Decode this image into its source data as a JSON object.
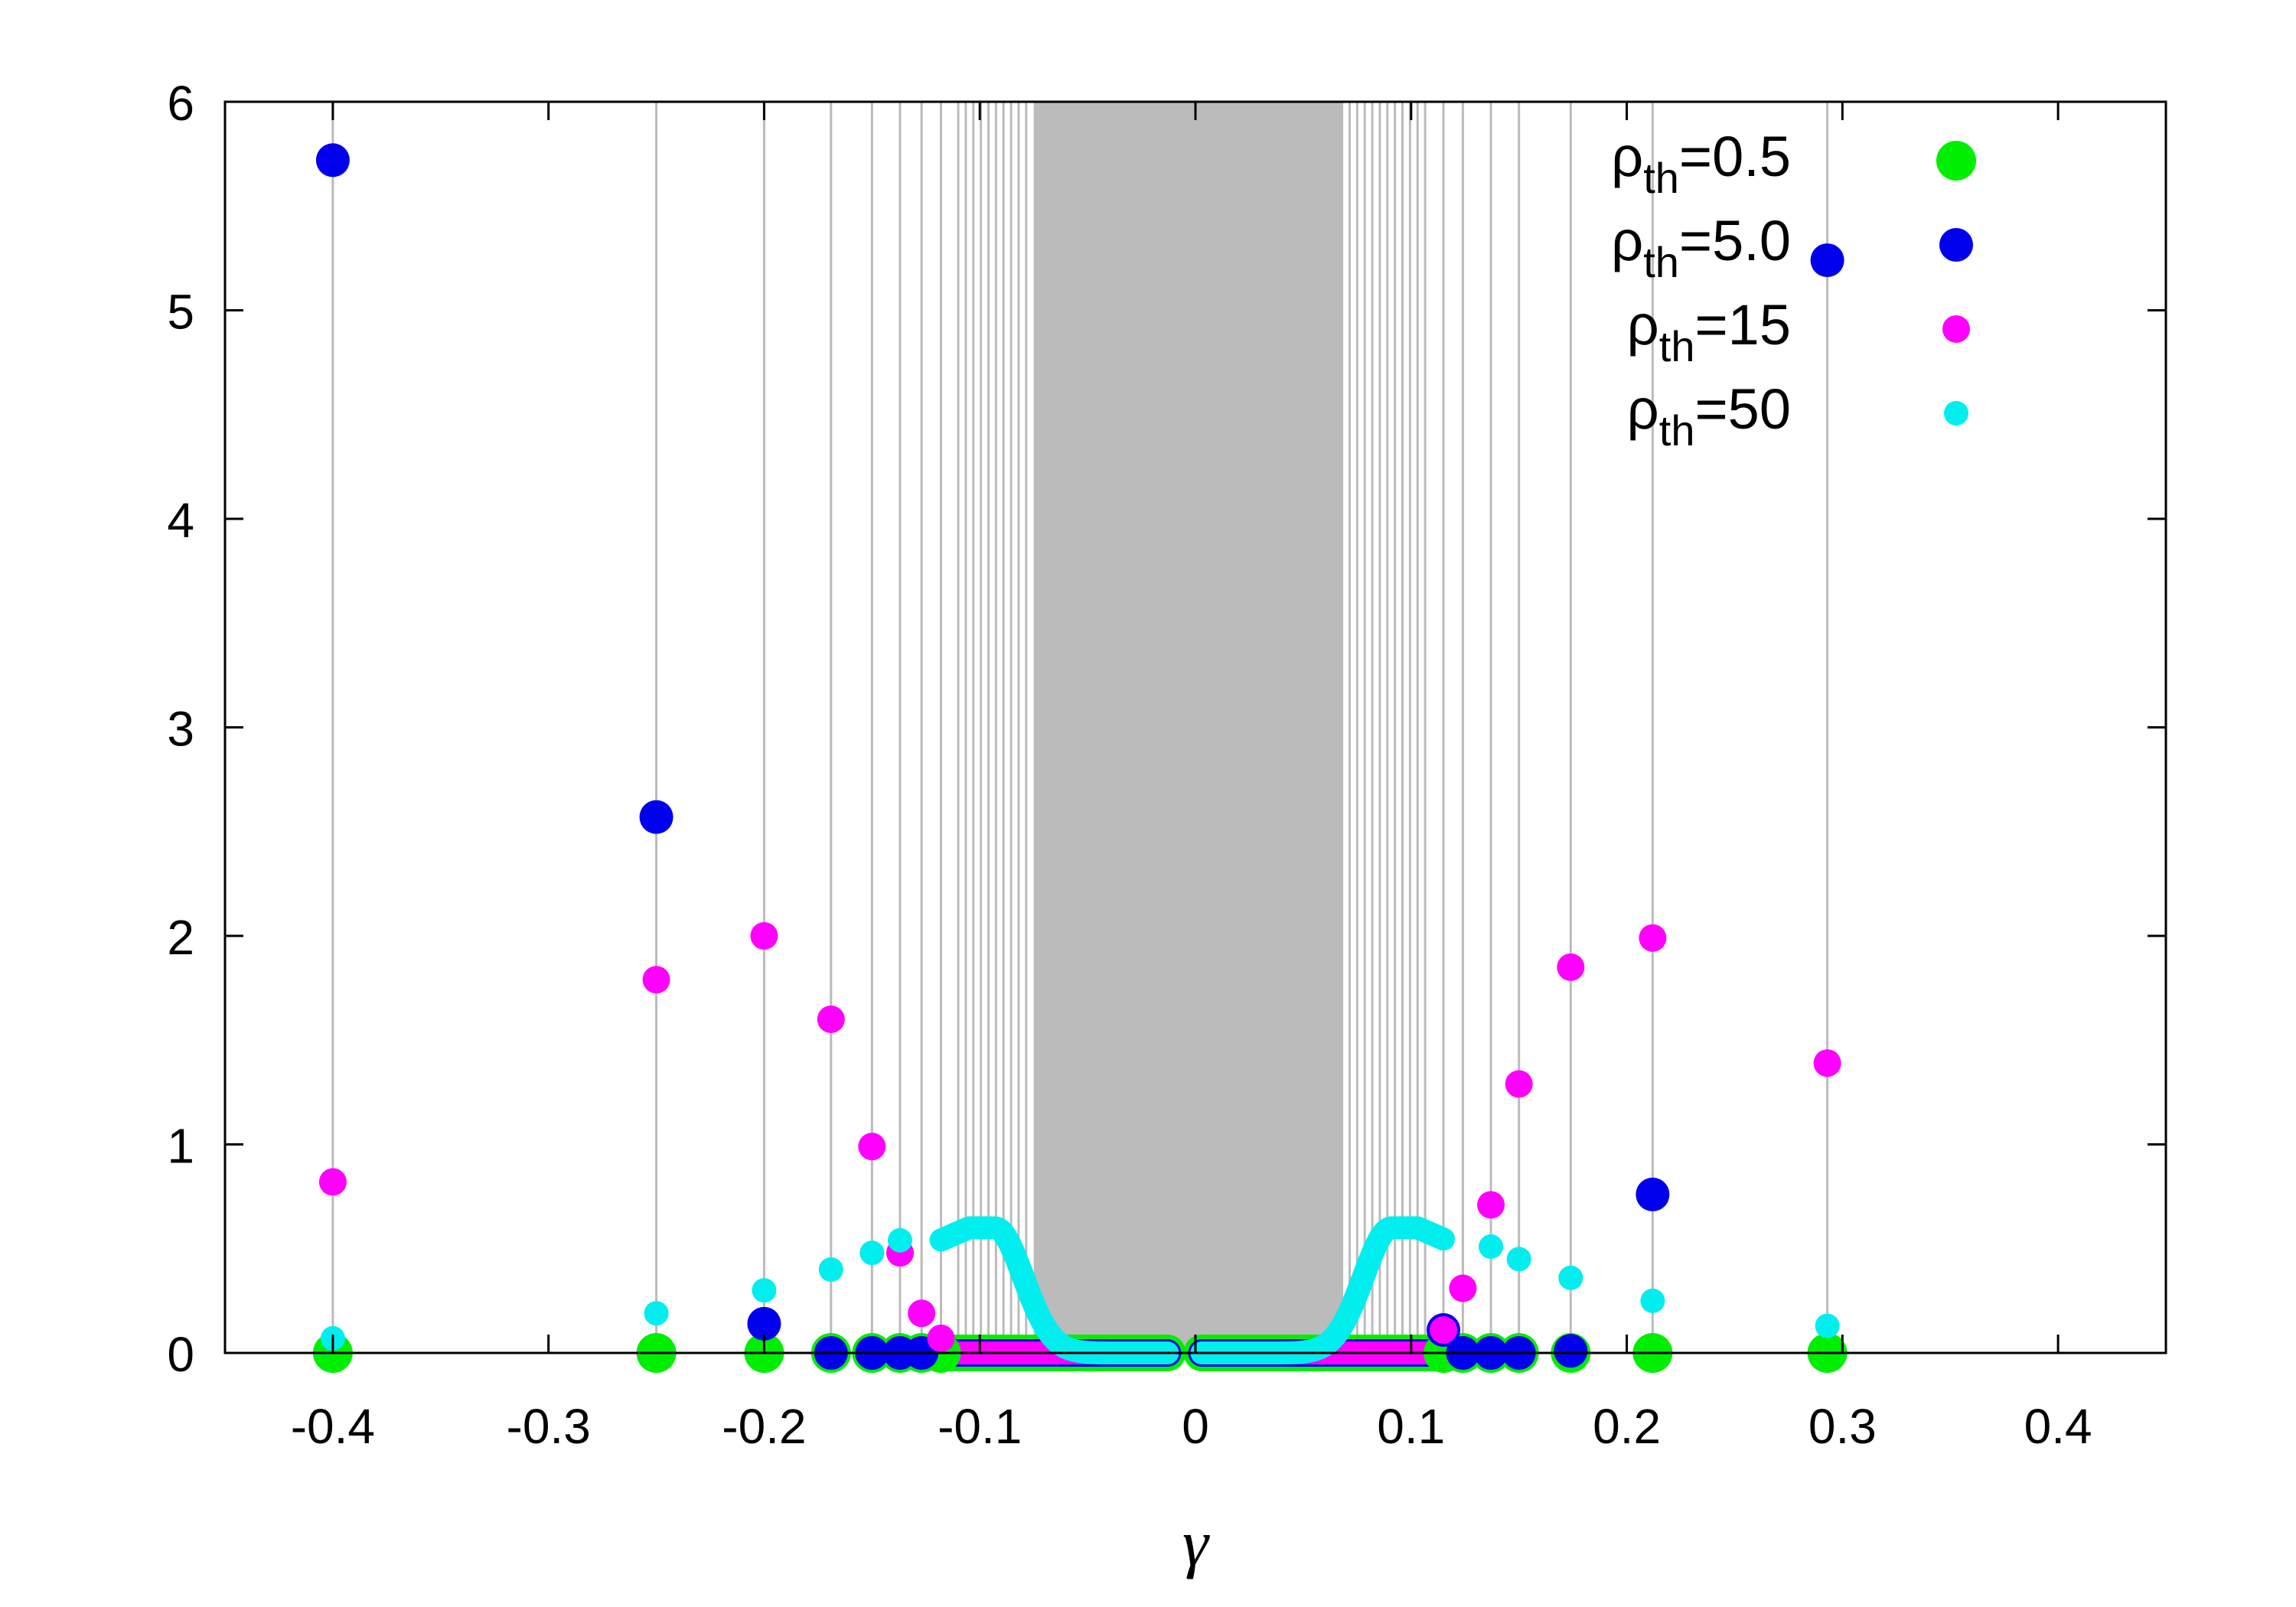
{
  "chart_data": {
    "type": "scatter",
    "title": "",
    "xlabel": "γ",
    "ylabel": "",
    "xlim": [
      -0.45,
      0.45
    ],
    "ylim": [
      0,
      6
    ],
    "x_ticks": [
      "-0.4",
      "-0.3",
      "-0.2",
      "-0.1",
      "0",
      "0.1",
      "0.2",
      "0.3",
      "0.4"
    ],
    "y_ticks": [
      "0",
      "1",
      "2",
      "3",
      "4",
      "5",
      "6"
    ],
    "grid": "vertical lines at gamma values",
    "legend_placement": "top-right",
    "colors": {
      "green": "#00ee00",
      "blue": "#0000ee",
      "magenta": "#ff00ff",
      "cyan": "#00eeee",
      "grid": "#bbbbbb"
    },
    "series": [
      {
        "name": "ρth=0.5",
        "legend_symbol": "ρ",
        "legend_sub": "th",
        "legend_value": "=0.5",
        "color": "#00ee00",
        "marker": "large",
        "points": [
          [
            -0.4,
            0
          ],
          [
            -0.25,
            0
          ],
          [
            -0.2,
            0
          ],
          [
            -0.169,
            0
          ],
          [
            -0.15,
            0
          ],
          [
            -0.137,
            0
          ],
          [
            -0.127,
            0
          ],
          [
            -0.118,
            0
          ],
          [
            0.115,
            0
          ],
          [
            0.124,
            0
          ],
          [
            0.137,
            0
          ],
          [
            0.15,
            0
          ],
          [
            0.174,
            0
          ],
          [
            0.212,
            0
          ],
          [
            0.293,
            0
          ]
        ]
      },
      {
        "name": "ρth=5.0",
        "legend_symbol": "ρ",
        "legend_sub": "th",
        "legend_value": "=5.0",
        "color": "#0000ee",
        "marker": "medium",
        "points": [
          [
            -0.4,
            5.72
          ],
          [
            -0.25,
            2.57
          ],
          [
            -0.2,
            0.14
          ],
          [
            -0.169,
            0
          ],
          [
            -0.15,
            0
          ],
          [
            -0.137,
            0
          ],
          [
            -0.127,
            0
          ],
          [
            0.115,
            0.11
          ],
          [
            0.124,
            0
          ],
          [
            0.137,
            0
          ],
          [
            0.15,
            0
          ],
          [
            0.174,
            0.01
          ],
          [
            0.212,
            0.76
          ],
          [
            0.293,
            5.24
          ]
        ]
      },
      {
        "name": "ρth=15",
        "legend_symbol": "ρ",
        "legend_sub": "th",
        "legend_value": "=15",
        "color": "#ff00ff",
        "marker": "small",
        "points": [
          [
            -0.4,
            0.82
          ],
          [
            -0.25,
            1.79
          ],
          [
            -0.2,
            2.0
          ],
          [
            -0.169,
            1.6
          ],
          [
            -0.15,
            0.99
          ],
          [
            -0.137,
            0.48
          ],
          [
            -0.127,
            0.19
          ],
          [
            -0.118,
            0.07
          ],
          [
            0.115,
            0.11
          ],
          [
            0.124,
            0.31
          ],
          [
            0.137,
            0.71
          ],
          [
            0.15,
            1.29
          ],
          [
            0.174,
            1.85
          ],
          [
            0.212,
            1.99
          ],
          [
            0.293,
            1.39
          ]
        ]
      },
      {
        "name": "ρth=50",
        "legend_symbol": "ρ",
        "legend_sub": "th",
        "legend_value": "=50",
        "color": "#00eeee",
        "marker": "smallest",
        "points": [
          [
            -0.4,
            0.07
          ],
          [
            -0.25,
            0.19
          ],
          [
            -0.2,
            0.3
          ],
          [
            -0.169,
            0.4
          ],
          [
            -0.15,
            0.48
          ],
          [
            -0.137,
            0.54
          ],
          [
            0.137,
            0.51
          ],
          [
            0.15,
            0.45
          ],
          [
            0.174,
            0.36
          ],
          [
            0.212,
            0.25
          ],
          [
            0.293,
            0.13
          ]
        ]
      }
    ]
  }
}
